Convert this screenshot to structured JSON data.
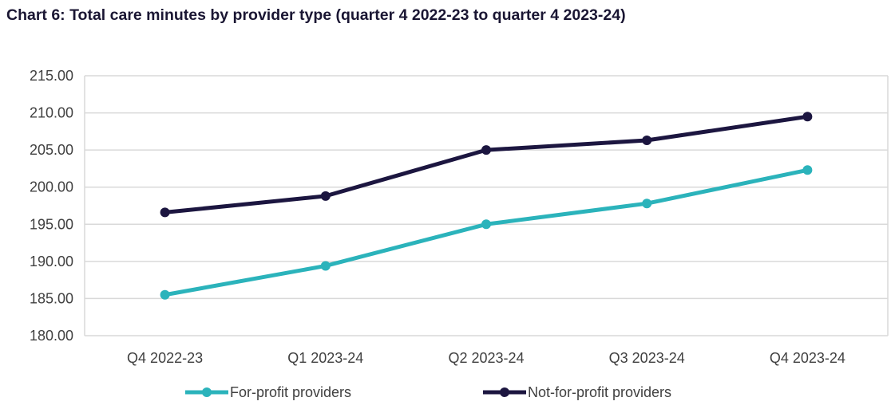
{
  "chart_data": {
    "type": "line",
    "title": "Chart 6: Total care minutes by provider type (quarter 4 2022-23 to quarter 4 2023-24)",
    "categories": [
      "Q4 2022-23",
      "Q1 2023-24",
      "Q2 2023-24",
      "Q3 2023-24",
      "Q4 2023-24"
    ],
    "ylim": [
      180,
      215
    ],
    "yticks": [
      "180.00",
      "185.00",
      "190.00",
      "195.00",
      "200.00",
      "205.00",
      "210.00",
      "215.00"
    ],
    "grid": true,
    "legend_position": "bottom",
    "series": [
      {
        "name": "For-profit providers",
        "color": "#2bb3bb",
        "values": [
          185.5,
          189.4,
          195.0,
          197.8,
          202.3
        ]
      },
      {
        "name": "Not-for-profit providers",
        "color": "#1c1640",
        "values": [
          196.6,
          198.8,
          205.0,
          206.3,
          209.5
        ]
      }
    ]
  }
}
